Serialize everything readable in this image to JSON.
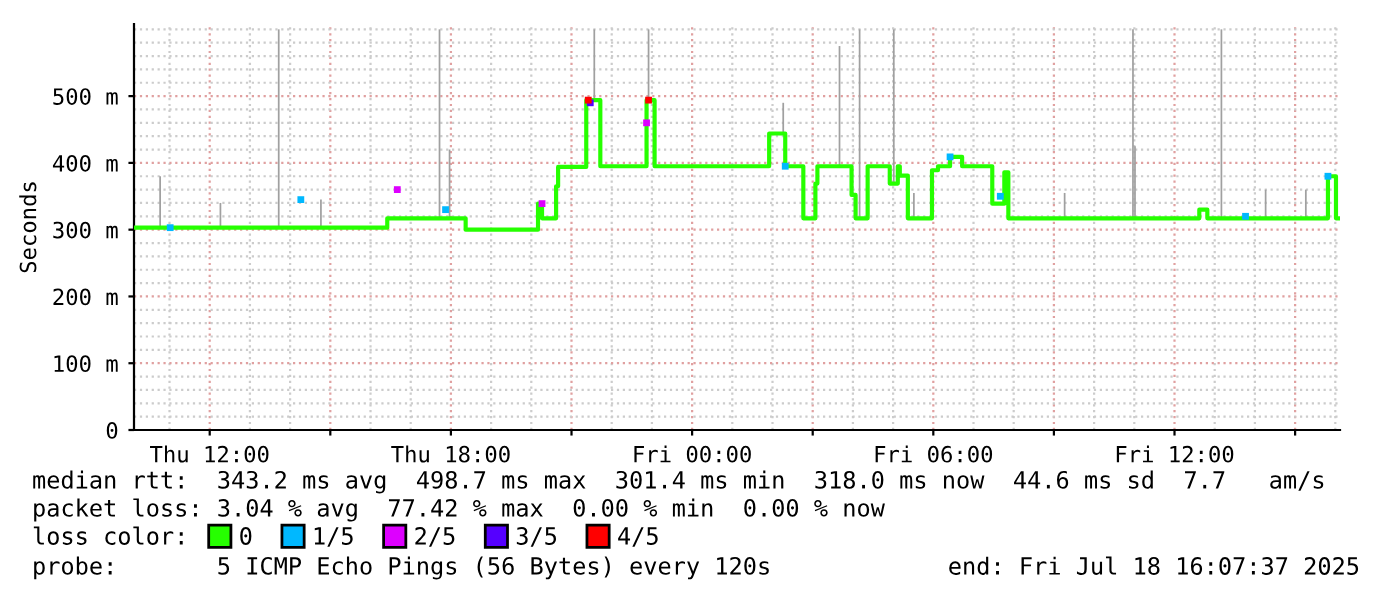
{
  "chart_data": {
    "type": "step",
    "ylabel": "Seconds",
    "legend_title": "loss color:",
    "legend": "bottom",
    "grid": true,
    "xlim": [
      "2025-07-17T10:07",
      "2025-07-18T16:07"
    ],
    "ylim": [
      0,
      608
    ],
    "xticks": [
      {
        "value": "2025-07-17T12:00",
        "label": "Thu 12:00"
      },
      {
        "value": "2025-07-17T15:00",
        "label": null
      },
      {
        "value": "2025-07-17T18:00",
        "label": "Thu 18:00"
      },
      {
        "value": "2025-07-17T21:00",
        "label": null
      },
      {
        "value": "2025-07-18T00:00",
        "label": "Fri 00:00"
      },
      {
        "value": "2025-07-18T03:00",
        "label": null
      },
      {
        "value": "2025-07-18T06:00",
        "label": "Fri 06:00"
      },
      {
        "value": "2025-07-18T09:00",
        "label": null
      },
      {
        "value": "2025-07-18T12:00",
        "label": "Fri 12:00"
      },
      {
        "value": "2025-07-18T15:00",
        "label": null
      }
    ],
    "yticks": [
      0,
      {
        "value": 100,
        "label": "100 m"
      },
      {
        "value": 200,
        "label": "200 m"
      },
      {
        "value": 300,
        "label": "300 m"
      },
      {
        "value": 400,
        "label": "400 m"
      },
      {
        "value": 500,
        "label": "500 m"
      }
    ],
    "series": [
      {
        "type": "bar",
        "color": "#a0a0a0",
        "x": [
          "2025-07-17T10:46",
          "2025-07-17T12:16",
          "2025-07-17T13:43",
          "2025-07-17T14:46",
          "2025-07-17T17:43",
          "2025-07-17T17:58",
          "2025-07-17T21:34",
          "2025-07-17T22:55",
          "2025-07-18T02:16",
          "2025-07-18T03:40",
          "2025-07-18T04:10",
          "2025-07-18T05:01",
          "2025-07-18T05:31",
          "2025-07-18T09:16",
          "2025-07-18T10:58",
          "2025-07-18T11:01",
          "2025-07-18T13:10",
          "2025-07-18T14:16",
          "2025-07-18T15:16"
        ],
        "base": [
          303,
          303,
          303,
          303,
          317,
          317,
          494,
          494,
          444,
          395,
          317,
          369,
          317,
          317,
          317,
          317,
          317,
          317,
          317
        ],
        "values": [
          77,
          37,
          297,
          42,
          283,
          103,
          106,
          106,
          46,
          180,
          283,
          231,
          38,
          38,
          283,
          108,
          283,
          43,
          43
        ]
      },
      {
        "name": "0",
        "color": "#26ff00",
        "x": [
          "2025-07-17T10:07",
          "2025-07-17T16:25",
          "2025-07-17T18:22",
          "2025-07-17T20:10",
          "2025-07-17T20:16",
          "2025-07-17T20:37",
          "2025-07-17T20:40",
          "2025-07-17T21:22",
          "2025-07-17T21:43",
          "2025-07-17T22:52",
          "2025-07-17T23:04",
          "2025-07-18T01:55",
          "2025-07-18T02:19",
          "2025-07-18T02:46",
          "2025-07-18T03:04",
          "2025-07-18T03:07",
          "2025-07-18T03:58",
          "2025-07-18T04:04",
          "2025-07-18T04:22",
          "2025-07-18T04:55",
          "2025-07-18T05:07",
          "2025-07-18T05:10",
          "2025-07-18T05:22",
          "2025-07-18T05:58",
          "2025-07-18T06:07",
          "2025-07-18T06:25",
          "2025-07-18T06:43",
          "2025-07-18T07:28",
          "2025-07-18T07:46",
          "2025-07-18T07:52",
          "2025-07-18T12:37",
          "2025-07-18T12:49",
          "2025-07-18T15:49",
          "2025-07-18T16:01",
          "2025-07-18T16:07"
        ],
        "values": [
          303,
          317,
          300,
          339,
          317,
          365,
          394,
          494,
          395,
          494,
          395,
          444,
          395,
          317,
          369,
          395,
          352,
          317,
          395,
          369,
          395,
          381,
          317,
          389,
          395,
          409,
          395,
          339,
          386,
          317,
          330,
          317,
          380,
          317,
          317
        ]
      },
      {
        "type": "scatter",
        "name": "1/5",
        "color": "#00b8ff",
        "x": [
          "2025-07-17T11:01",
          "2025-07-17T14:16",
          "2025-07-17T17:52",
          "2025-07-18T02:19",
          "2025-07-18T06:25",
          "2025-07-18T07:40",
          "2025-07-18T13:46",
          "2025-07-18T15:49"
        ],
        "values": [
          303,
          345,
          330,
          395,
          409,
          350,
          320,
          380
        ]
      },
      {
        "type": "scatter",
        "name": "2/5",
        "color": "#dd00ff",
        "x": [
          "2025-07-17T16:40",
          "2025-07-17T20:16",
          "2025-07-17T22:52"
        ],
        "values": [
          360,
          339,
          460
        ]
      },
      {
        "type": "scatter",
        "name": "3/5",
        "color": "#5500ff",
        "x": [
          "2025-07-17T21:28"
        ],
        "values": [
          490
        ]
      },
      {
        "type": "scatter",
        "name": "4/5",
        "color": "#ff0000",
        "x": [
          "2025-07-17T21:25",
          "2025-07-17T22:55"
        ],
        "values": [
          494,
          494
        ]
      }
    ],
    "annotations": [
      "median rtt:  343.2 ms avg  498.7 ms max  301.4 ms min  318.0 ms now  44.6 ms sd  7.7   am/s",
      "packet loss: 3.04 % avg  77.42 % max  0.00 % min  0.00 % now",
      "probe:       5 ICMP Echo Pings (56 Bytes) every 120s",
      "end: Fri Jul 18 16:07:37 2025"
    ]
  }
}
